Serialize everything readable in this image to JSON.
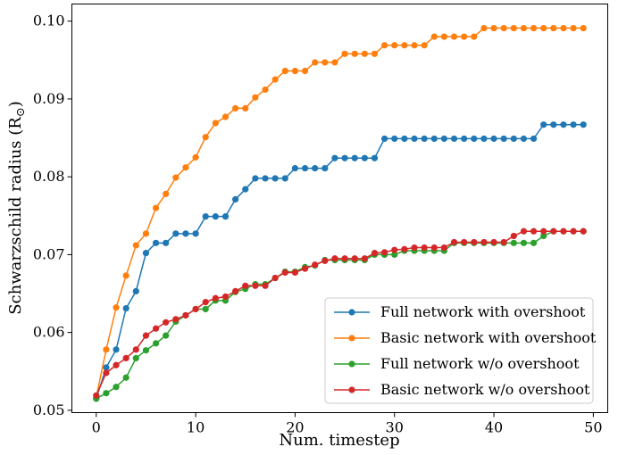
{
  "chart_data": {
    "type": "line",
    "xlabel": "Num. timestep",
    "ylabel": "Schwarzschild radius (R",
    "ylabel_symbol": "⊙",
    "ylabel_close": ")",
    "xlim": [
      -2.45,
      51.45
    ],
    "ylim": [
      0.0497,
      0.1022
    ],
    "xticks": [
      0,
      10,
      20,
      30,
      40,
      50
    ],
    "xtick_labels": [
      "0",
      "10",
      "20",
      "30",
      "40",
      "50"
    ],
    "yticks": [
      0.05,
      0.06,
      0.07,
      0.08,
      0.09,
      0.1
    ],
    "ytick_labels": [
      "0.05",
      "0.06",
      "0.07",
      "0.08",
      "0.09",
      "0.10"
    ],
    "grid": false,
    "legend_position": "lower-right",
    "series": [
      {
        "name": "Full network with overshoot",
        "color": "#1f77b4",
        "x": [
          0,
          1,
          2,
          3,
          4,
          5,
          6,
          7,
          8,
          9,
          10,
          11,
          12,
          13,
          14,
          15,
          16,
          17,
          18,
          19,
          20,
          21,
          22,
          23,
          24,
          25,
          26,
          27,
          28,
          29,
          30,
          31,
          32,
          33,
          34,
          35,
          36,
          37,
          38,
          39,
          40,
          41,
          42,
          43,
          44,
          45,
          46,
          47,
          48,
          49
        ],
        "values": [
          0.0515,
          0.0555,
          0.0578,
          0.0631,
          0.0653,
          0.0702,
          0.0715,
          0.0715,
          0.0727,
          0.0727,
          0.0727,
          0.0749,
          0.0749,
          0.0749,
          0.0771,
          0.0784,
          0.0798,
          0.0798,
          0.0798,
          0.0798,
          0.0811,
          0.0811,
          0.0811,
          0.0811,
          0.0824,
          0.0824,
          0.0824,
          0.0824,
          0.0824,
          0.0849,
          0.0849,
          0.0849,
          0.0849,
          0.0849,
          0.0849,
          0.0849,
          0.0849,
          0.0849,
          0.0849,
          0.0849,
          0.0849,
          0.0849,
          0.0849,
          0.0849,
          0.0849,
          0.0867,
          0.0867,
          0.0867,
          0.0867,
          0.0867
        ]
      },
      {
        "name": "Basic network with overshoot",
        "color": "#ff7f0e",
        "x": [
          0,
          1,
          2,
          3,
          4,
          5,
          6,
          7,
          8,
          9,
          10,
          11,
          12,
          13,
          14,
          15,
          16,
          17,
          18,
          19,
          20,
          21,
          22,
          23,
          24,
          25,
          26,
          27,
          28,
          29,
          30,
          31,
          32,
          33,
          34,
          35,
          36,
          37,
          38,
          39,
          40,
          41,
          42,
          43,
          44,
          45,
          46,
          47,
          48,
          49
        ],
        "values": [
          0.0517,
          0.0578,
          0.0632,
          0.0673,
          0.0712,
          0.0727,
          0.076,
          0.0778,
          0.0799,
          0.0812,
          0.0825,
          0.0851,
          0.0869,
          0.0877,
          0.0888,
          0.0888,
          0.0902,
          0.0912,
          0.0925,
          0.0936,
          0.0936,
          0.0936,
          0.0947,
          0.0947,
          0.0947,
          0.0958,
          0.0958,
          0.0958,
          0.0958,
          0.0969,
          0.0969,
          0.0969,
          0.0969,
          0.0969,
          0.098,
          0.098,
          0.098,
          0.098,
          0.098,
          0.0991,
          0.0991,
          0.0991,
          0.0991,
          0.0991,
          0.0991,
          0.0991,
          0.0991,
          0.0991,
          0.0991,
          0.0991
        ]
      },
      {
        "name": "Full network w/o overshoot",
        "color": "#2ca02c",
        "x": [
          0,
          1,
          2,
          3,
          4,
          5,
          6,
          7,
          8,
          9,
          10,
          11,
          12,
          13,
          14,
          15,
          16,
          17,
          18,
          19,
          20,
          21,
          22,
          23,
          24,
          25,
          26,
          27,
          28,
          29,
          30,
          31,
          32,
          33,
          34,
          35,
          36,
          37,
          38,
          39,
          40,
          41,
          42,
          43,
          44,
          45,
          46,
          47,
          48,
          49
        ],
        "values": [
          0.0515,
          0.0522,
          0.053,
          0.0542,
          0.0567,
          0.0577,
          0.0586,
          0.0596,
          0.0614,
          0.0622,
          0.063,
          0.063,
          0.0641,
          0.0641,
          0.0652,
          0.0656,
          0.0662,
          0.0662,
          0.067,
          0.0678,
          0.0678,
          0.0684,
          0.0686,
          0.0693,
          0.0693,
          0.0693,
          0.0693,
          0.0693,
          0.07,
          0.07,
          0.07,
          0.0705,
          0.0705,
          0.0705,
          0.0705,
          0.0705,
          0.0715,
          0.0715,
          0.0715,
          0.0715,
          0.0715,
          0.0715,
          0.0715,
          0.0715,
          0.0715,
          0.0724,
          0.073,
          0.073,
          0.073,
          0.073
        ]
      },
      {
        "name": "Basic network w/o overshoot",
        "color": "#d62728",
        "x": [
          0,
          1,
          2,
          3,
          4,
          5,
          6,
          7,
          8,
          9,
          10,
          11,
          12,
          13,
          14,
          15,
          16,
          17,
          18,
          19,
          20,
          21,
          22,
          23,
          24,
          25,
          26,
          27,
          28,
          29,
          30,
          31,
          32,
          33,
          34,
          35,
          36,
          37,
          38,
          39,
          40,
          41,
          42,
          43,
          44,
          45,
          46,
          47,
          48,
          49
        ],
        "values": [
          0.0519,
          0.0548,
          0.0558,
          0.0567,
          0.0578,
          0.0596,
          0.0605,
          0.0613,
          0.0617,
          0.0622,
          0.063,
          0.0639,
          0.0644,
          0.0646,
          0.0653,
          0.066,
          0.066,
          0.066,
          0.067,
          0.0677,
          0.0677,
          0.0682,
          0.0687,
          0.0692,
          0.0695,
          0.0695,
          0.0695,
          0.0695,
          0.0702,
          0.0703,
          0.0706,
          0.0707,
          0.0709,
          0.0709,
          0.0709,
          0.0709,
          0.0716,
          0.0716,
          0.0716,
          0.0716,
          0.0716,
          0.0716,
          0.0724,
          0.073,
          0.073,
          0.073,
          0.073,
          0.073,
          0.073,
          0.073
        ]
      }
    ]
  }
}
